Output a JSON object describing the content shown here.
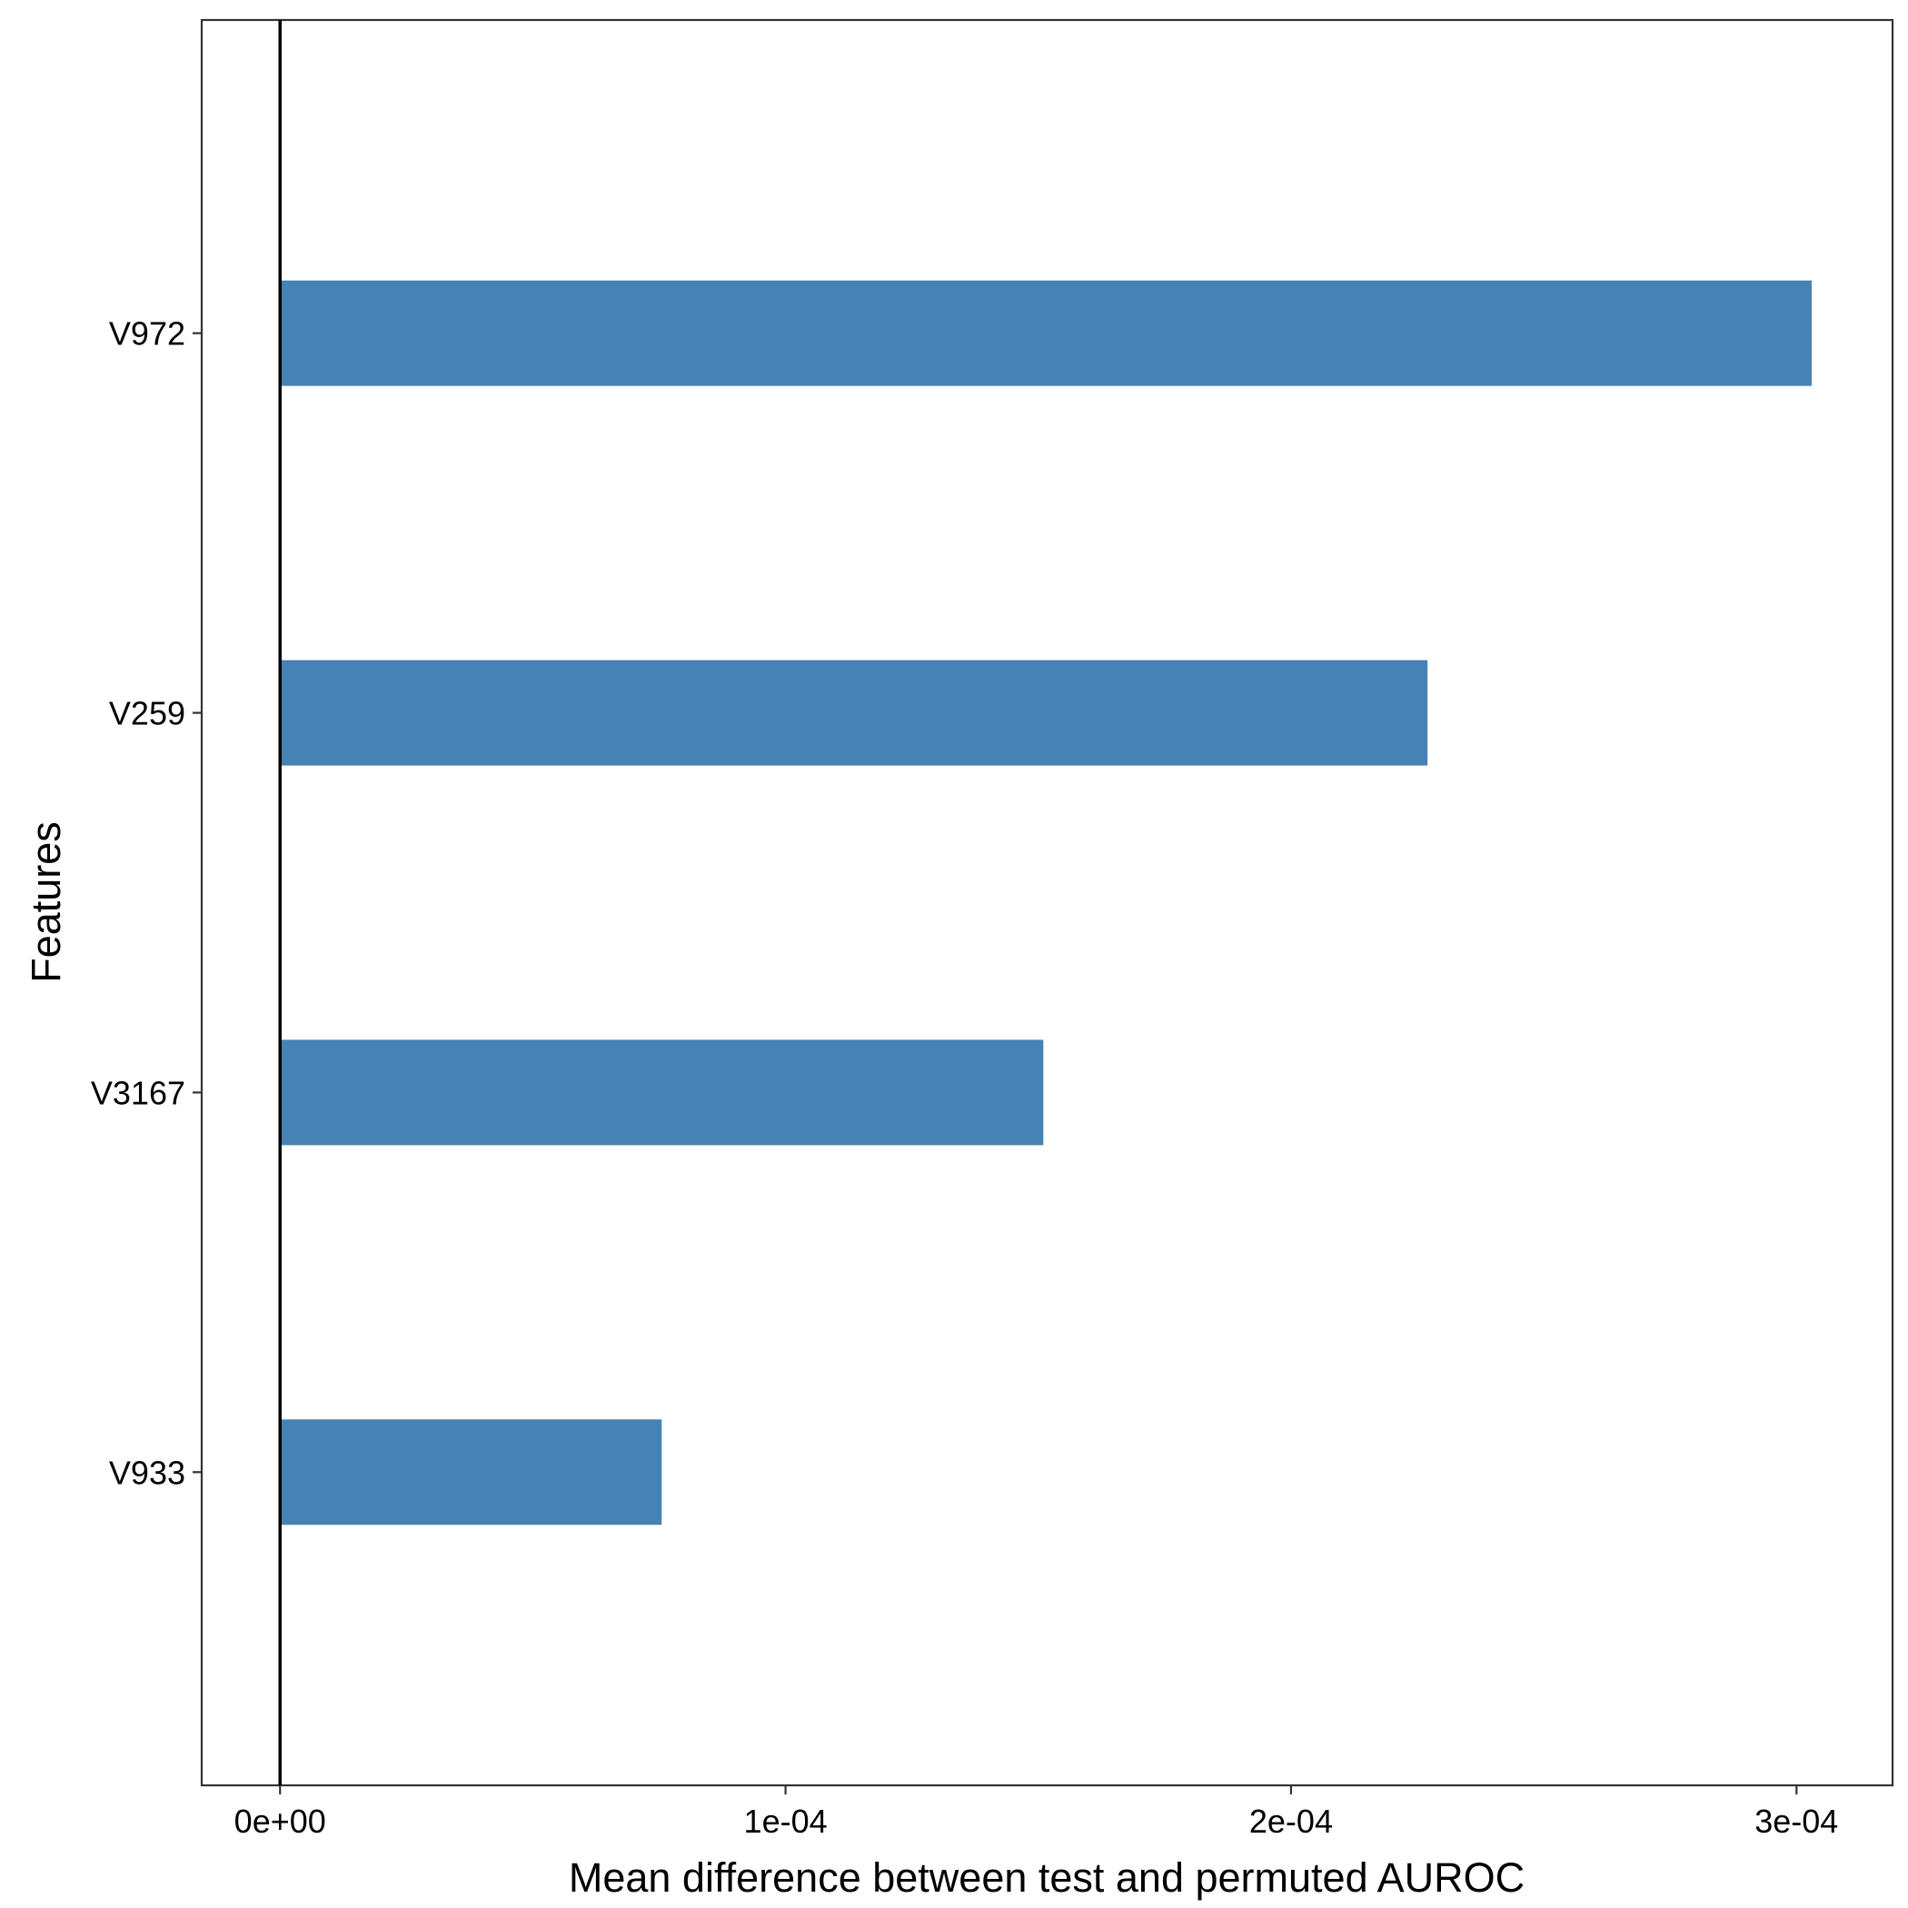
{
  "chart_data": {
    "type": "bar",
    "orientation": "horizontal",
    "title": "",
    "xlabel": "Mean difference between test and permuted AUROC",
    "ylabel": "Features",
    "categories": [
      "V972",
      "V259",
      "V3167",
      "V933"
    ],
    "values": [
      0.000303,
      0.000227,
      0.000151,
      7.55e-05
    ],
    "xlim": [
      -1.55e-05,
      0.000319
    ],
    "xticks": [
      0,
      0.0001,
      0.0002,
      0.0003
    ],
    "xtick_labels": [
      "0e+00",
      "1e-04",
      "2e-04",
      "3e-04"
    ],
    "bar_color": "#4682B4",
    "zero_line": true,
    "grid": false,
    "legend": "none"
  }
}
